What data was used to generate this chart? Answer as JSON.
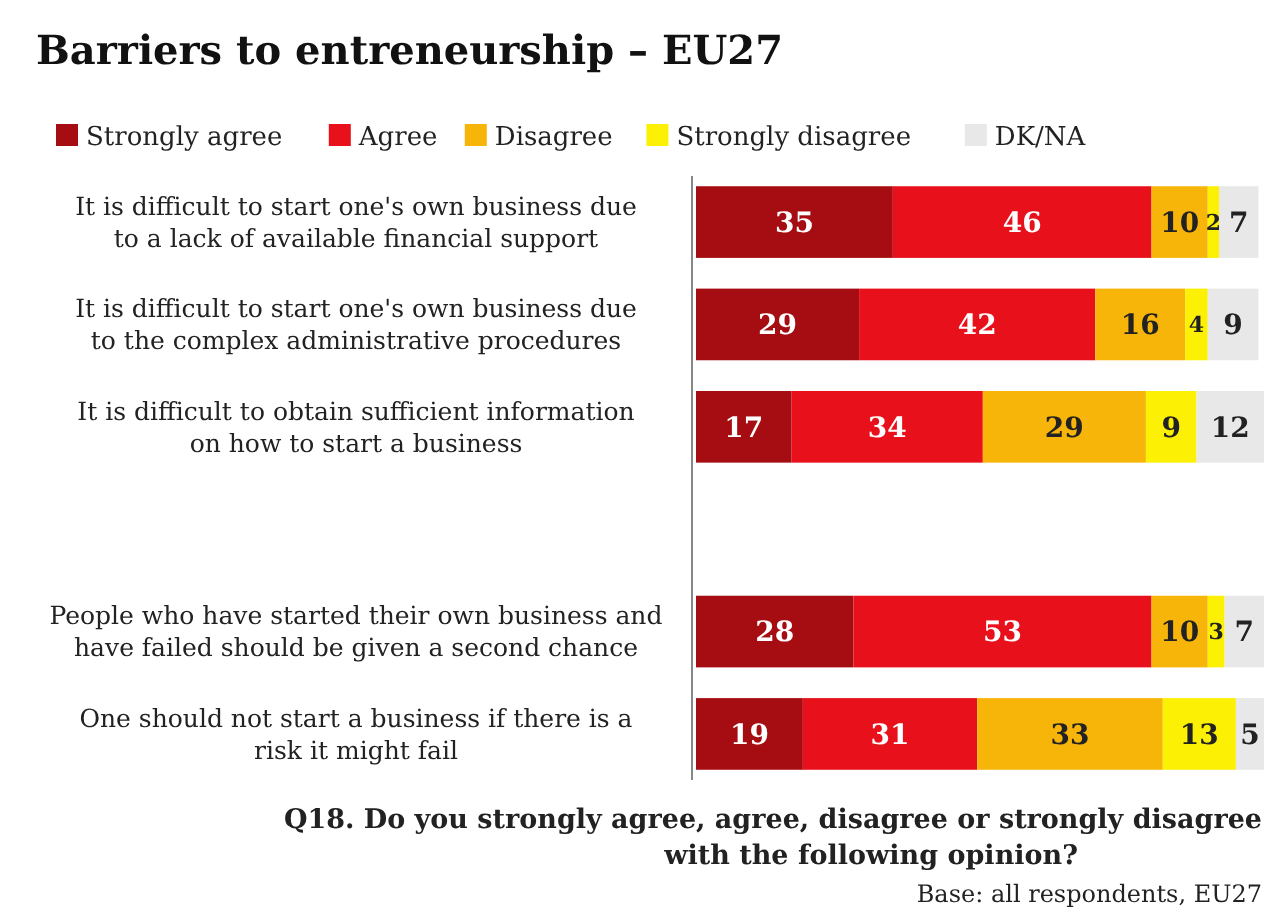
{
  "chart_data": {
    "type": "bar",
    "orientation": "horizontal",
    "stacked": true,
    "xlim": [
      0,
      101
    ],
    "data_labels": true,
    "legend": "top",
    "title": "Barriers to entreneurship – EU27",
    "categories": [
      "It is difficult to start one's own business due to a lack of available financial support",
      "It is difficult to start one's own business due to the complex administrative procedures",
      "It is difficult to obtain sufficient information on how to start a business",
      null,
      "People who have started their own business and have failed should be given a second chance",
      "One should not start a business if there is a risk it might fail"
    ],
    "series": [
      {
        "name": "Strongly agree",
        "color": "#a50d12",
        "values": [
          35,
          29,
          17,
          null,
          28,
          19
        ]
      },
      {
        "name": "Agree",
        "color": "#e8111b",
        "values": [
          46,
          42,
          34,
          null,
          53,
          31
        ]
      },
      {
        "name": "Disagree",
        "color": "#f7b50a",
        "values": [
          10,
          16,
          29,
          null,
          10,
          33
        ]
      },
      {
        "name": "Strongly disagree",
        "color": "#fcf004",
        "values": [
          2,
          4,
          9,
          null,
          3,
          13
        ]
      },
      {
        "name": "DK/NA",
        "color": "#e8e8e8",
        "values": [
          7,
          9,
          12,
          null,
          7,
          5
        ]
      }
    ],
    "annotations": [
      "Q18. Do you strongly agree, agree, disagree or strongly disagree with the following opinion?",
      "Base: all respondents, EU27"
    ]
  }
}
